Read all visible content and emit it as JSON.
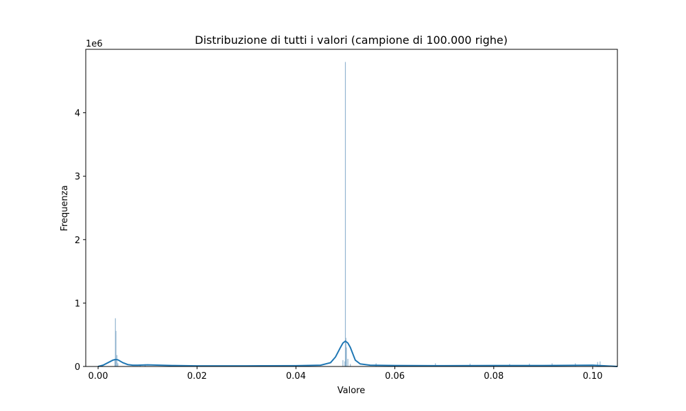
{
  "chart_data": {
    "type": "bar",
    "title": "Distribuzione di tutti i valori (campione di 100.000 righe)",
    "xlabel": "Valore",
    "ylabel": "Frequenza",
    "y_multiplier_label": "1e6",
    "xlim": [
      -0.0025,
      0.105
    ],
    "ylim": [
      0,
      5.0
    ],
    "x_ticks": [
      0.0,
      0.02,
      0.04,
      0.06,
      0.08,
      0.1
    ],
    "x_tick_labels": [
      "0.00",
      "0.02",
      "0.04",
      "0.06",
      "0.08",
      "0.10"
    ],
    "y_ticks": [
      0,
      1,
      2,
      3,
      4
    ],
    "y_tick_labels": [
      "0",
      "1",
      "2",
      "3",
      "4"
    ],
    "grid": false,
    "histogram": {
      "name": "count",
      "color": "#7fa8c8",
      "bars": [
        {
          "x": 0.0035,
          "value": 0.76
        },
        {
          "x": 0.0036,
          "value": 0.56
        },
        {
          "x": 0.0038,
          "value": 0.18
        },
        {
          "x": 0.004,
          "value": 0.05
        },
        {
          "x": 0.0034,
          "value": 0.1
        },
        {
          "x": 0.0085,
          "value": 0.03
        },
        {
          "x": 0.0095,
          "value": 0.035
        },
        {
          "x": 0.0499,
          "value": 0.08
        },
        {
          "x": 0.05,
          "value": 4.8
        },
        {
          "x": 0.0501,
          "value": 0.45
        },
        {
          "x": 0.0502,
          "value": 0.3
        },
        {
          "x": 0.0505,
          "value": 0.12
        },
        {
          "x": 0.0495,
          "value": 0.1
        },
        {
          "x": 0.051,
          "value": 0.04
        },
        {
          "x": 0.0562,
          "value": 0.05
        },
        {
          "x": 0.0682,
          "value": 0.05
        },
        {
          "x": 0.0752,
          "value": 0.045
        },
        {
          "x": 0.0832,
          "value": 0.04
        },
        {
          "x": 0.0872,
          "value": 0.045
        },
        {
          "x": 0.0918,
          "value": 0.05
        },
        {
          "x": 0.0965,
          "value": 0.05
        },
        {
          "x": 0.101,
          "value": 0.07
        },
        {
          "x": 0.1015,
          "value": 0.08
        }
      ]
    },
    "kde": {
      "name": "kde",
      "color": "#1f77b4",
      "x": [
        0.0,
        0.001,
        0.002,
        0.003,
        0.0035,
        0.004,
        0.005,
        0.006,
        0.007,
        0.008,
        0.01,
        0.015,
        0.02,
        0.03,
        0.04,
        0.045,
        0.047,
        0.048,
        0.049,
        0.0495,
        0.05,
        0.0505,
        0.051,
        0.052,
        0.053,
        0.055,
        0.06,
        0.07,
        0.08,
        0.09,
        0.1,
        0.105
      ],
      "y": [
        0.0,
        0.02,
        0.06,
        0.1,
        0.11,
        0.105,
        0.06,
        0.03,
        0.02,
        0.02,
        0.025,
        0.015,
        0.01,
        0.01,
        0.012,
        0.02,
        0.06,
        0.15,
        0.3,
        0.37,
        0.4,
        0.37,
        0.3,
        0.1,
        0.04,
        0.02,
        0.015,
        0.012,
        0.015,
        0.015,
        0.02,
        0.0
      ]
    }
  }
}
